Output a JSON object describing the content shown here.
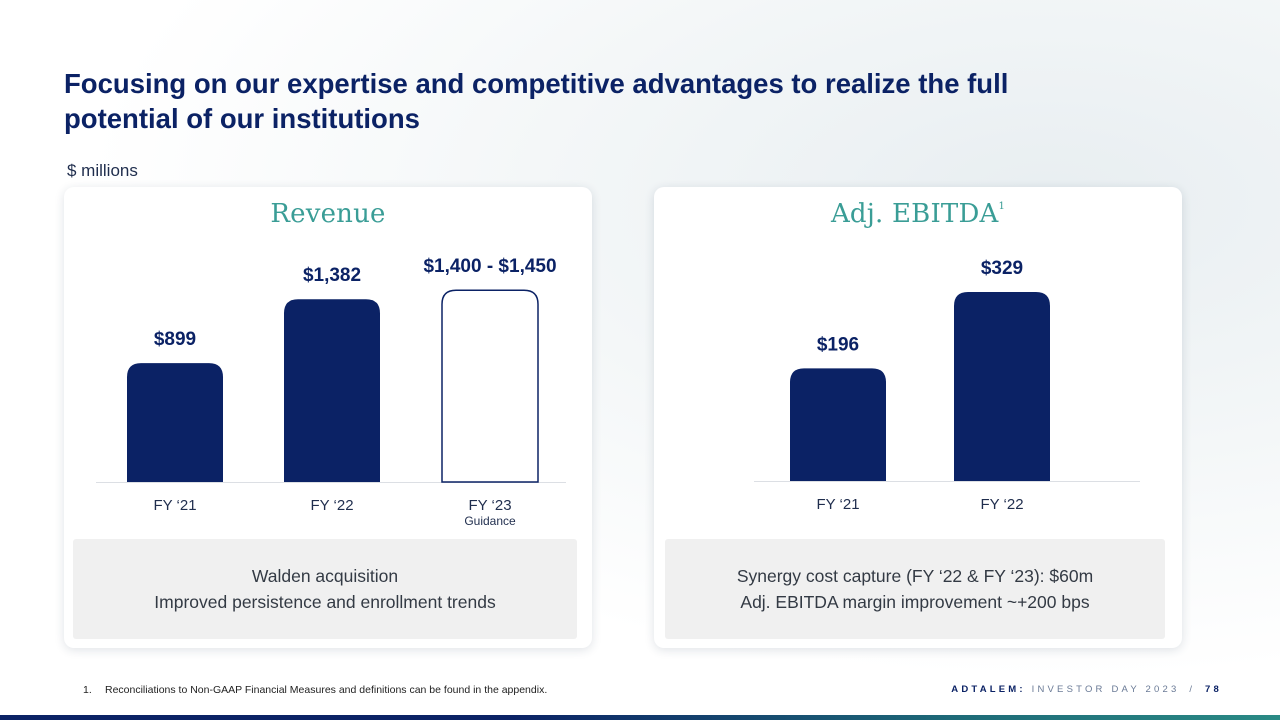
{
  "title": "Focusing on our expertise and competitive advantages to realize the full potential of our institutions",
  "units": "$ millions",
  "colors": {
    "navy": "#0b2265",
    "teal": "#3a9d96",
    "outline": "#0b2265"
  },
  "chart_data": [
    {
      "type": "bar",
      "title": "Revenue",
      "categories": [
        "FY ‘21",
        "FY ‘22",
        "FY ‘23"
      ],
      "category_sublabels": [
        "",
        "",
        "Guidance"
      ],
      "values": [
        899,
        1382,
        1450
      ],
      "value_range_low": [
        null,
        null,
        1400
      ],
      "data_labels": [
        "$899",
        "$1,382",
        "$1,400 - $1,450"
      ],
      "styles": [
        "filled",
        "filled",
        "outline"
      ],
      "ylim": [
        0,
        1550
      ]
    },
    {
      "type": "bar",
      "title": "Adj. EBITDA",
      "title_superscript": "1",
      "categories": [
        "FY ‘21",
        "FY ‘22"
      ],
      "values": [
        196,
        329
      ],
      "data_labels": [
        "$196",
        "$329"
      ],
      "styles": [
        "filled",
        "filled"
      ],
      "ylim": [
        0,
        355
      ]
    }
  ],
  "revenue_callout": [
    "Walden acquisition",
    "Improved persistence and enrollment trends"
  ],
  "ebitda_callout": [
    "Synergy cost capture (FY ‘22 & FY ‘23): $60m",
    "Adj. EBITDA margin improvement ~+200 bps"
  ],
  "footnote": {
    "number": "1.",
    "text": "Reconciliations to Non-GAAP Financial Measures and definitions can be found in the appendix."
  },
  "brand": {
    "name": "ADTALEM:",
    "event": "INVESTOR DAY 2023",
    "separator": "/",
    "page": "78"
  }
}
